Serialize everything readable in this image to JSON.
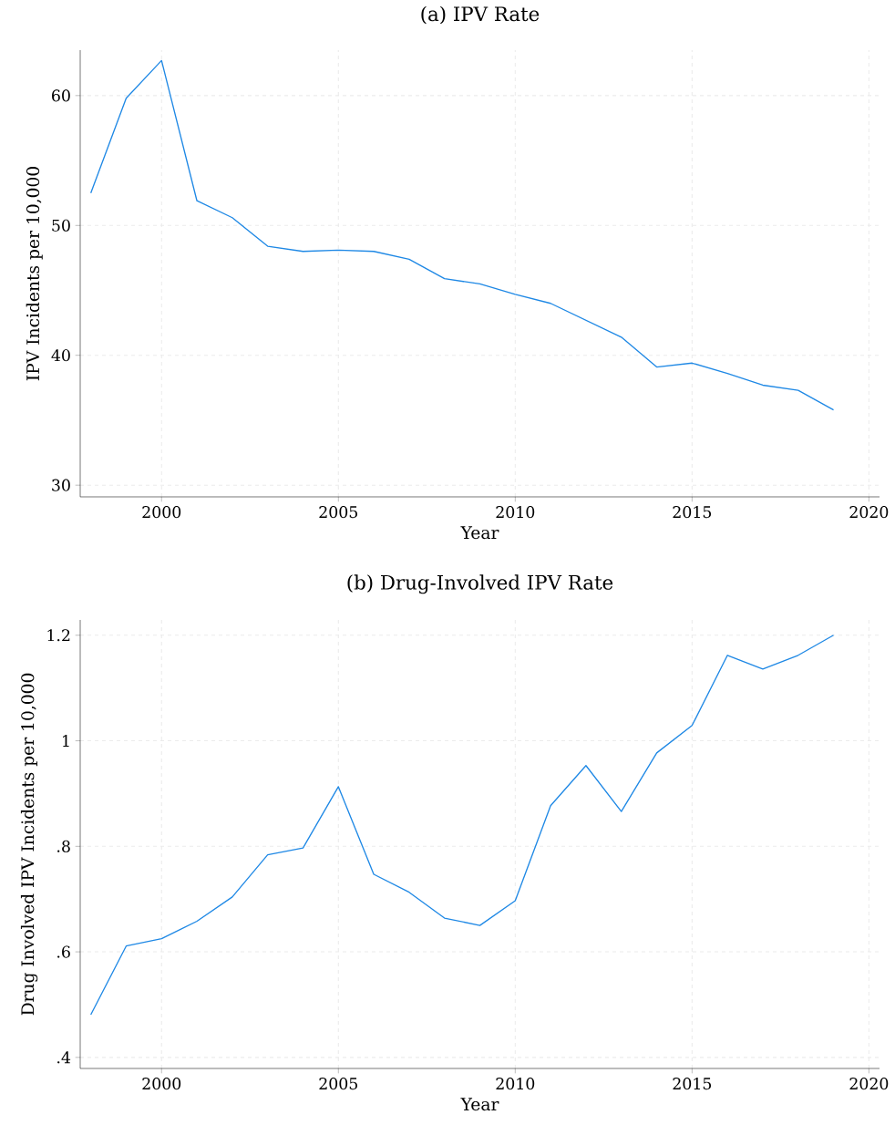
{
  "chart_data": [
    {
      "type": "line",
      "title": "(a) IPV Rate",
      "xlabel": "Year",
      "ylabel": "IPV Incidents per 10,000",
      "color": "#1e88e5",
      "grid": true,
      "x": [
        1998,
        1999,
        2000,
        2001,
        2002,
        2003,
        2004,
        2005,
        2006,
        2007,
        2008,
        2009,
        2010,
        2011,
        2012,
        2013,
        2014,
        2015,
        2016,
        2017,
        2018,
        2019
      ],
      "values": [
        52.5,
        59.8,
        62.7,
        51.9,
        50.6,
        48.4,
        48.0,
        48.1,
        48.0,
        47.4,
        45.9,
        45.5,
        44.7,
        44.0,
        42.7,
        41.4,
        39.1,
        39.4,
        38.6,
        37.7,
        37.3,
        35.8
      ],
      "xlim": [
        1997.7,
        2020.3
      ],
      "ylim": [
        29.1,
        63.5
      ],
      "xticks": [
        2000,
        2005,
        2010,
        2015,
        2020
      ],
      "yticks": [
        30,
        40,
        50,
        60
      ]
    },
    {
      "type": "line",
      "title": "(b) Drug-Involved IPV Rate",
      "xlabel": "Year",
      "ylabel": "Drug Involved IPV Incidents per 10,000",
      "color": "#1e88e5",
      "grid": true,
      "x": [
        1998,
        1999,
        2000,
        2001,
        2002,
        2003,
        2004,
        2005,
        2006,
        2007,
        2008,
        2009,
        2010,
        2011,
        2012,
        2013,
        2014,
        2015,
        2016,
        2017,
        2018,
        2019
      ],
      "values": [
        0.481,
        0.611,
        0.625,
        0.658,
        0.704,
        0.784,
        0.797,
        0.913,
        0.747,
        0.713,
        0.664,
        0.65,
        0.697,
        0.877,
        0.953,
        0.866,
        0.977,
        1.029,
        1.162,
        1.136,
        1.162,
        1.2
      ],
      "xlim": [
        1997.7,
        2020.3
      ],
      "ylim": [
        0.379,
        1.229
      ],
      "xticks": [
        2000,
        2005,
        2010,
        2015,
        2020
      ],
      "yticks": [
        {
          "value": 0.4,
          "label": ".4"
        },
        {
          "value": 0.6,
          "label": ".6"
        },
        {
          "value": 0.8,
          "label": ".8"
        },
        {
          "value": 1,
          "label": "1"
        },
        {
          "value": 1.2,
          "label": "1.2"
        }
      ]
    }
  ]
}
